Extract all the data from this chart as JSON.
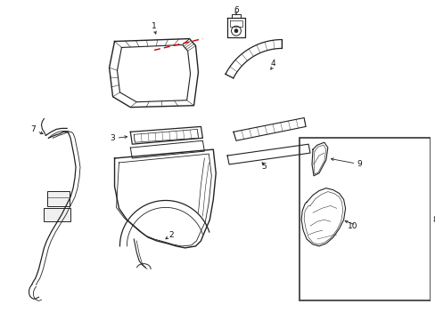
{
  "background_color": "#ffffff",
  "line_color": "#222222",
  "red_dashed_color": "#cc0000",
  "fig_width": 4.89,
  "fig_height": 3.6,
  "dpi": 100
}
